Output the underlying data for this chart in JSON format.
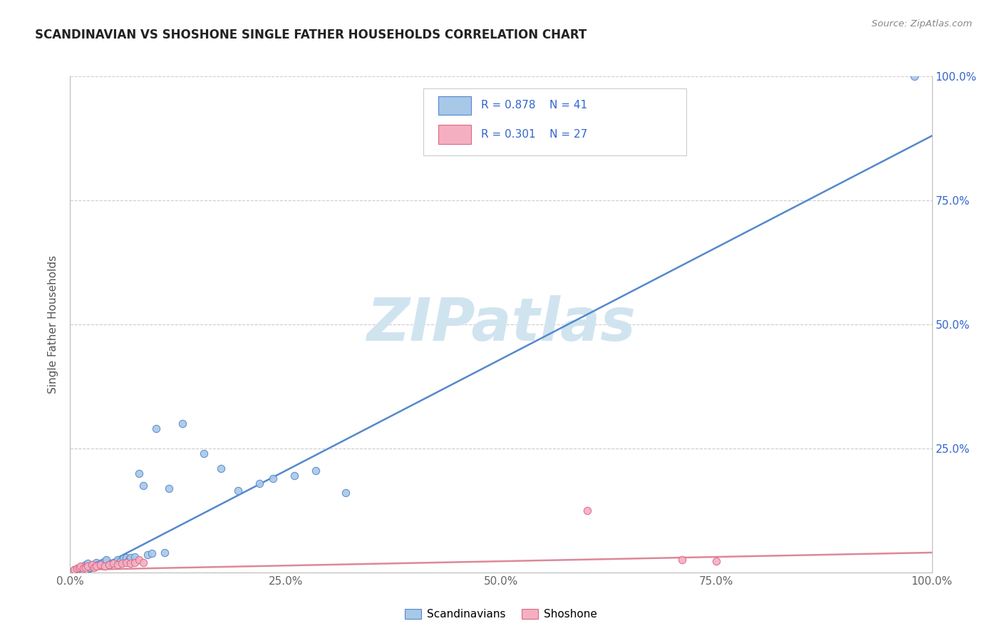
{
  "title": "SCANDINAVIAN VS SHOSHONE SINGLE FATHER HOUSEHOLDS CORRELATION CHART",
  "source_text": "Source: ZipAtlas.com",
  "ylabel": "Single Father Households",
  "xlim": [
    0,
    1.0
  ],
  "ylim": [
    0,
    1.0
  ],
  "xtick_labels": [
    "0.0%",
    "25.0%",
    "50.0%",
    "75.0%",
    "100.0%"
  ],
  "xtick_vals": [
    0.0,
    0.25,
    0.5,
    0.75,
    1.0
  ],
  "left_ytick_labels": [
    "",
    "",
    "",
    "",
    ""
  ],
  "left_ytick_vals": [
    0.0,
    0.25,
    0.5,
    0.75,
    1.0
  ],
  "right_ytick_labels": [
    "100.0%",
    "75.0%",
    "50.0%",
    "25.0%",
    ""
  ],
  "right_ytick_vals": [
    1.0,
    0.75,
    0.5,
    0.25,
    0.0
  ],
  "scandinavian_color": "#a8c8e8",
  "shoshone_color": "#f4b0c0",
  "scandinavian_edge": "#5588cc",
  "shoshone_edge": "#dd6688",
  "line_blue": "#5588cc",
  "line_pink": "#dd8899",
  "watermark": "ZIPatlas",
  "watermark_color": "#d0e4f0",
  "legend_color": "#3366cc",
  "legend_label1": "Scandinavians",
  "legend_label2": "Shoshone",
  "scandinavian_x": [
    0.005,
    0.01,
    0.012,
    0.015,
    0.018,
    0.02,
    0.022,
    0.025,
    0.03,
    0.032,
    0.035,
    0.038,
    0.04,
    0.042,
    0.045,
    0.048,
    0.05,
    0.055,
    0.058,
    0.062,
    0.065,
    0.068,
    0.07,
    0.075,
    0.08,
    0.085,
    0.09,
    0.095,
    0.1,
    0.11,
    0.115,
    0.13,
    0.155,
    0.175,
    0.195,
    0.22,
    0.235,
    0.26,
    0.285,
    0.32,
    0.98
  ],
  "scandinavian_y": [
    0.005,
    0.008,
    0.01,
    0.012,
    0.015,
    0.018,
    0.01,
    0.015,
    0.02,
    0.015,
    0.018,
    0.02,
    0.022,
    0.025,
    0.015,
    0.018,
    0.02,
    0.025,
    0.022,
    0.028,
    0.03,
    0.025,
    0.03,
    0.032,
    0.2,
    0.175,
    0.035,
    0.038,
    0.29,
    0.04,
    0.17,
    0.3,
    0.24,
    0.21,
    0.165,
    0.18,
    0.19,
    0.195,
    0.205,
    0.16,
    1.0
  ],
  "shoshone_x": [
    0.005,
    0.008,
    0.01,
    0.012,
    0.015,
    0.018,
    0.02,
    0.025,
    0.028,
    0.03,
    0.035,
    0.04,
    0.045,
    0.05,
    0.055,
    0.06,
    0.065,
    0.07,
    0.075,
    0.08,
    0.085,
    0.6,
    0.71,
    0.75
  ],
  "shoshone_y": [
    0.005,
    0.008,
    0.01,
    0.012,
    0.008,
    0.01,
    0.012,
    0.015,
    0.01,
    0.012,
    0.015,
    0.012,
    0.015,
    0.018,
    0.015,
    0.018,
    0.02,
    0.018,
    0.02,
    0.025,
    0.02,
    0.125,
    0.025,
    0.022
  ],
  "blue_line_x": [
    0.0,
    1.0
  ],
  "blue_line_y": [
    -0.02,
    0.88
  ],
  "pink_line_x": [
    0.0,
    1.0
  ],
  "pink_line_y": [
    0.005,
    0.04
  ]
}
